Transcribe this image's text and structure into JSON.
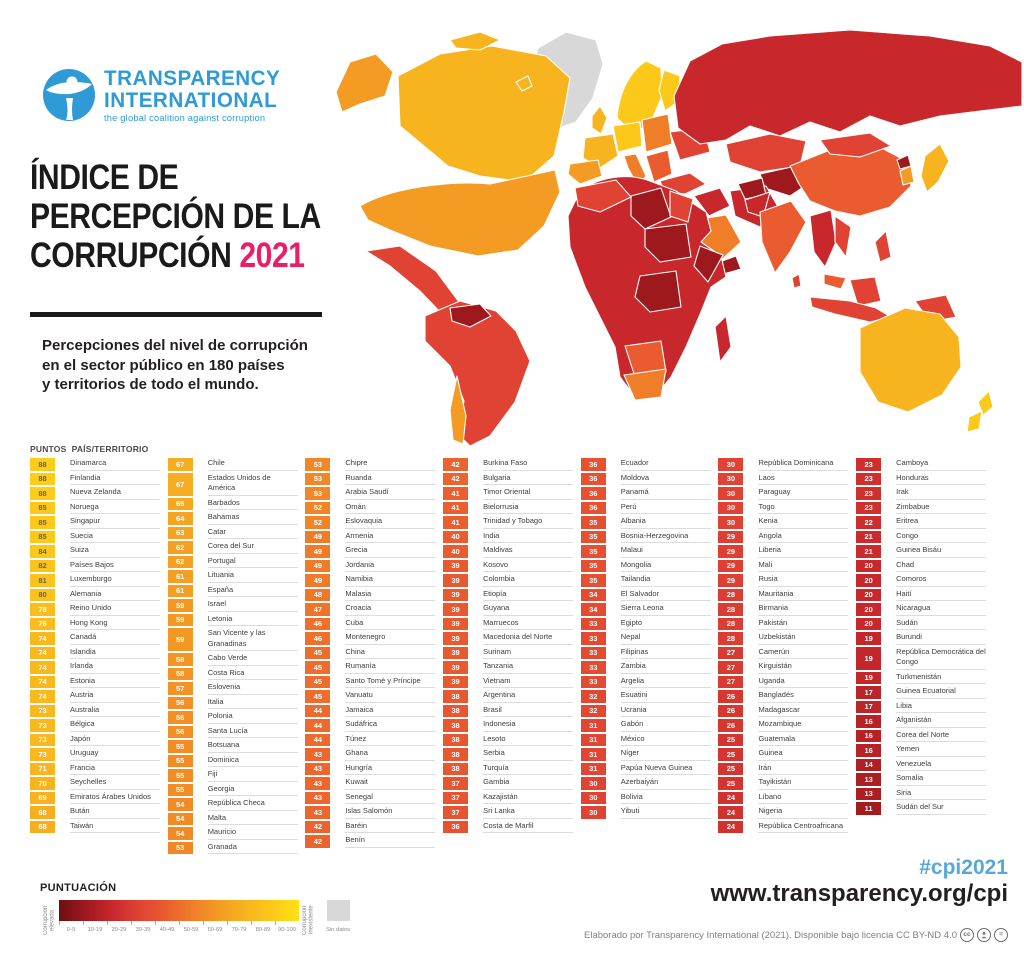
{
  "logo": {
    "name_line1": "TRANSPARENCY",
    "name_line2": "INTERNATIONAL",
    "tagline": "the global coalition against corruption",
    "brand_color": "#2e9bd6"
  },
  "title": {
    "line1": "ÍNDICE DE",
    "line2": "PERCEPCIÓN DE LA",
    "line3_black": "CORRUPCIÓN",
    "year": "2021",
    "year_color": "#ec1d67"
  },
  "subtitle": {
    "line1": "Percepciones del nivel de corrupción",
    "line2": "en el sector público en 180 países",
    "line3": "y territorios de todo el mundo."
  },
  "table": {
    "header_points": "PUNTOS",
    "header_country": "PAÍS/TERRITORIO",
    "columns": [
      [
        [
          88,
          "Dinamarca"
        ],
        [
          88,
          "Finlandia"
        ],
        [
          88,
          "Nueva Zelanda"
        ],
        [
          85,
          "Noruega"
        ],
        [
          85,
          "Singapur"
        ],
        [
          85,
          "Suecia"
        ],
        [
          84,
          "Suiza"
        ],
        [
          82,
          "Países Bajos"
        ],
        [
          81,
          "Luxemburgo"
        ],
        [
          80,
          "Alemania"
        ],
        [
          78,
          "Reino Unido"
        ],
        [
          76,
          "Hong Kong"
        ],
        [
          74,
          "Canadá"
        ],
        [
          74,
          "Islandia"
        ],
        [
          74,
          "Irlanda"
        ],
        [
          74,
          "Estonia"
        ],
        [
          74,
          "Austria"
        ],
        [
          73,
          "Australia"
        ],
        [
          73,
          "Bélgica"
        ],
        [
          73,
          "Japón"
        ],
        [
          73,
          "Uruguay"
        ],
        [
          71,
          "Francia"
        ],
        [
          70,
          "Seychelles"
        ],
        [
          69,
          "Emiratos Árabes Unidos"
        ],
        [
          68,
          "Bután"
        ],
        [
          68,
          "Taiwán"
        ]
      ],
      [
        [
          67,
          "Chile"
        ],
        [
          67,
          "Estados Unidos de América"
        ],
        [
          65,
          "Barbados"
        ],
        [
          64,
          "Bahamas"
        ],
        [
          63,
          "Catar"
        ],
        [
          62,
          "Corea del Sur"
        ],
        [
          62,
          "Portugal"
        ],
        [
          61,
          "Lituania"
        ],
        [
          61,
          "España"
        ],
        [
          59,
          "Israel"
        ],
        [
          59,
          "Letonia"
        ],
        [
          59,
          "San Vicente y las Granadinas"
        ],
        [
          58,
          "Cabo Verde"
        ],
        [
          58,
          "Costa Rica"
        ],
        [
          57,
          "Eslovenia"
        ],
        [
          56,
          "Italia"
        ],
        [
          56,
          "Polonia"
        ],
        [
          56,
          "Santa Lucía"
        ],
        [
          55,
          "Botsuana"
        ],
        [
          55,
          "Dominica"
        ],
        [
          55,
          "Fiji"
        ],
        [
          55,
          "Georgia"
        ],
        [
          54,
          "República Checa"
        ],
        [
          54,
          "Malta"
        ],
        [
          54,
          "Mauricio"
        ],
        [
          53,
          "Granada"
        ]
      ],
      [
        [
          53,
          "Chipre"
        ],
        [
          53,
          "Ruanda"
        ],
        [
          53,
          "Arabia Saudí"
        ],
        [
          52,
          "Omán"
        ],
        [
          52,
          "Eslovaquia"
        ],
        [
          49,
          "Armenia"
        ],
        [
          49,
          "Grecia"
        ],
        [
          49,
          "Jordania"
        ],
        [
          49,
          "Namibia"
        ],
        [
          48,
          "Malasia"
        ],
        [
          47,
          "Croacia"
        ],
        [
          46,
          "Cuba"
        ],
        [
          46,
          "Montenegro"
        ],
        [
          45,
          "China"
        ],
        [
          45,
          "Rumanía"
        ],
        [
          45,
          "Santo Tomé y Príncipe"
        ],
        [
          45,
          "Vanuatu"
        ],
        [
          44,
          "Jamaica"
        ],
        [
          44,
          "Sudáfrica"
        ],
        [
          44,
          "Túnez"
        ],
        [
          43,
          "Ghana"
        ],
        [
          43,
          "Hungría"
        ],
        [
          43,
          "Kuwait"
        ],
        [
          43,
          "Senegal"
        ],
        [
          43,
          "Islas Salomón"
        ],
        [
          42,
          "Baréin"
        ],
        [
          42,
          "Benín"
        ]
      ],
      [
        [
          42,
          "Burkina Faso"
        ],
        [
          42,
          "Bulgaria"
        ],
        [
          41,
          "Timor Oriental"
        ],
        [
          41,
          "Bielorrusia"
        ],
        [
          41,
          "Trinidad y Tobago"
        ],
        [
          40,
          "India"
        ],
        [
          40,
          "Maldivas"
        ],
        [
          39,
          "Kosovo"
        ],
        [
          39,
          "Colombia"
        ],
        [
          39,
          "Etiopía"
        ],
        [
          39,
          "Guyana"
        ],
        [
          39,
          "Marruecos"
        ],
        [
          39,
          "Macedonia del Norte"
        ],
        [
          39,
          "Surinam"
        ],
        [
          39,
          "Tanzania"
        ],
        [
          39,
          "Vietnam"
        ],
        [
          38,
          "Argentina"
        ],
        [
          38,
          "Brasil"
        ],
        [
          38,
          "Indonesia"
        ],
        [
          38,
          "Lesoto"
        ],
        [
          38,
          "Serbia"
        ],
        [
          38,
          "Turquía"
        ],
        [
          37,
          "Gambia"
        ],
        [
          37,
          "Kazajistán"
        ],
        [
          37,
          "Sri Lanka"
        ],
        [
          36,
          "Costa de Marfil"
        ]
      ],
      [
        [
          36,
          "Ecuador"
        ],
        [
          36,
          "Moldova"
        ],
        [
          36,
          "Panamá"
        ],
        [
          36,
          "Perú"
        ],
        [
          35,
          "Albania"
        ],
        [
          35,
          "Bosnia-Herzegovina"
        ],
        [
          35,
          "Malaui"
        ],
        [
          35,
          "Mongolia"
        ],
        [
          35,
          "Tailandia"
        ],
        [
          34,
          "El Salvador"
        ],
        [
          34,
          "Sierra Leona"
        ],
        [
          33,
          "Egipto"
        ],
        [
          33,
          "Nepal"
        ],
        [
          33,
          "Filipinas"
        ],
        [
          33,
          "Zambia"
        ],
        [
          33,
          "Argelia"
        ],
        [
          32,
          "Esuatini"
        ],
        [
          32,
          "Ucrania"
        ],
        [
          31,
          "Gabón"
        ],
        [
          31,
          "México"
        ],
        [
          31,
          "Níger"
        ],
        [
          31,
          "Papúa Nueva Guinea"
        ],
        [
          30,
          "Azerbaiyán"
        ],
        [
          30,
          "Bolivia"
        ],
        [
          30,
          "Yibuti"
        ]
      ],
      [
        [
          30,
          "República Dominicana"
        ],
        [
          30,
          "Laos"
        ],
        [
          30,
          "Paraguay"
        ],
        [
          30,
          "Togo"
        ],
        [
          30,
          "Kenia"
        ],
        [
          29,
          "Angola"
        ],
        [
          29,
          "Liberia"
        ],
        [
          29,
          "Mali"
        ],
        [
          29,
          "Rusia"
        ],
        [
          28,
          "Mauritania"
        ],
        [
          28,
          "Birmania"
        ],
        [
          28,
          "Pakistán"
        ],
        [
          28,
          "Uzbekistán"
        ],
        [
          27,
          "Camerún"
        ],
        [
          27,
          "Kirguistán"
        ],
        [
          27,
          "Uganda"
        ],
        [
          26,
          "Bangladés"
        ],
        [
          26,
          "Madagascar"
        ],
        [
          26,
          "Mozambique"
        ],
        [
          25,
          "Guatemala"
        ],
        [
          25,
          "Guinea"
        ],
        [
          25,
          "Irán"
        ],
        [
          25,
          "Tayikistán"
        ],
        [
          24,
          "Líbano"
        ],
        [
          24,
          "Nigeria"
        ],
        [
          24,
          "República Centroafricana"
        ]
      ],
      [
        [
          23,
          "Camboya"
        ],
        [
          23,
          "Honduras"
        ],
        [
          23,
          "Irak"
        ],
        [
          23,
          "Zimbabue"
        ],
        [
          22,
          "Eritrea"
        ],
        [
          21,
          "Congo"
        ],
        [
          21,
          "Guinea Bisáu"
        ],
        [
          20,
          "Chad"
        ],
        [
          20,
          "Comoros"
        ],
        [
          20,
          "Haití"
        ],
        [
          20,
          "Nicaragua"
        ],
        [
          20,
          "Sudán"
        ],
        [
          19,
          "Burundi"
        ],
        [
          19,
          "República Democrática del Congo"
        ],
        [
          19,
          "Turkmenistán"
        ],
        [
          17,
          "Guinea Ecuatorial"
        ],
        [
          17,
          "Libia"
        ],
        [
          16,
          "Afganistán"
        ],
        [
          16,
          "Corea del Norte"
        ],
        [
          16,
          "Yemen"
        ],
        [
          14,
          "Venezuela"
        ],
        [
          13,
          "Somalia"
        ],
        [
          13,
          "Siria"
        ],
        [
          11,
          "Sudán del Sur"
        ]
      ]
    ]
  },
  "legend": {
    "title": "PUNTUACIÓN",
    "left_label": "Corrupción elevada",
    "right_label": "Corrupción inexistente",
    "no_data_label": "Sin datos",
    "no_data_color": "#d8d8d8",
    "ranges": [
      "0-9",
      "10-19",
      "20-29",
      "30-39",
      "40-49",
      "50-59",
      "60-69",
      "70-79",
      "80-89",
      "90-100"
    ],
    "colors": [
      "#6e0e12",
      "#9e191e",
      "#c8282c",
      "#e04233",
      "#ea5c30",
      "#f07e28",
      "#f49b24",
      "#f8b41e",
      "#fcc91a",
      "#ffe215"
    ]
  },
  "score_scale": {
    "stops": [
      [
        0,
        "#6e0e12"
      ],
      [
        10,
        "#9e191e"
      ],
      [
        20,
        "#c8282c"
      ],
      [
        30,
        "#e04233"
      ],
      [
        40,
        "#ea5c30"
      ],
      [
        50,
        "#f07e28"
      ],
      [
        60,
        "#f49b24"
      ],
      [
        70,
        "#f8b41e"
      ],
      [
        80,
        "#fbc11c"
      ],
      [
        100,
        "#ffdf15"
      ]
    ],
    "dark_text": "#6e6243",
    "light_text": "#ffffff"
  },
  "footer": {
    "hashtag": "#cpi2021",
    "hashtag_color": "#56a8d8",
    "url": "www.transparency.org/cpi",
    "attribution": "Elaborado por Transparency International (2021). Disponible bajo licencia CC BY-ND 4.0",
    "cc_icons": [
      "cc",
      "by",
      "nd"
    ]
  },
  "chart_data": {
    "type": "heatmap",
    "title": "Índice de Percepción de la Corrupción 2021",
    "scale": {
      "min": 0,
      "max": 100,
      "low_label": "Corrupción elevada",
      "high_label": "Corrupción inexistente"
    },
    "scores": {
      "Dinamarca": 88,
      "Finlandia": 88,
      "Nueva Zelanda": 88,
      "Noruega": 85,
      "Singapur": 85,
      "Suecia": 85,
      "Suiza": 84,
      "Países Bajos": 82,
      "Luxemburgo": 81,
      "Alemania": 80,
      "Reino Unido": 78,
      "Hong Kong": 76,
      "Canadá": 74,
      "Islandia": 74,
      "Irlanda": 74,
      "Estonia": 74,
      "Austria": 74,
      "Australia": 73,
      "Bélgica": 73,
      "Japón": 73,
      "Uruguay": 73,
      "Francia": 71,
      "Seychelles": 70,
      "Emiratos Árabes Unidos": 69,
      "Bután": 68,
      "Taiwán": 68,
      "Chile": 67,
      "Estados Unidos de América": 67,
      "Barbados": 65,
      "Bahamas": 64,
      "Catar": 63,
      "Corea del Sur": 62,
      "Portugal": 62,
      "Lituania": 61,
      "España": 61,
      "Israel": 59,
      "Letonia": 59,
      "San Vicente y las Granadinas": 59,
      "Cabo Verde": 58,
      "Costa Rica": 58,
      "Eslovenia": 57,
      "Italia": 56,
      "Polonia": 56,
      "Santa Lucía": 56,
      "Botsuana": 55,
      "Dominica": 55,
      "Fiji": 55,
      "Georgia": 55,
      "República Checa": 54,
      "Malta": 54,
      "Mauricio": 54,
      "Granada": 53,
      "Chipre": 53,
      "Ruanda": 53,
      "Arabia Saudí": 53,
      "Omán": 52,
      "Eslovaquia": 52,
      "Armenia": 49,
      "Grecia": 49,
      "Jordania": 49,
      "Namibia": 49,
      "Malasia": 48,
      "Croacia": 47,
      "Cuba": 46,
      "Montenegro": 46,
      "China": 45,
      "Rumanía": 45,
      "Santo Tomé y Príncipe": 45,
      "Vanuatu": 45,
      "Jamaica": 44,
      "Sudáfrica": 44,
      "Túnez": 44,
      "Ghana": 43,
      "Hungría": 43,
      "Kuwait": 43,
      "Senegal": 43,
      "Islas Salomón": 43,
      "Baréin": 42,
      "Benín": 42,
      "Burkina Faso": 42,
      "Bulgaria": 42,
      "Timor Oriental": 41,
      "Bielorrusia": 41,
      "Trinidad y Tobago": 41,
      "India": 40,
      "Maldivas": 40,
      "Kosovo": 39,
      "Colombia": 39,
      "Etiopía": 39,
      "Guyana": 39,
      "Marruecos": 39,
      "Macedonia del Norte": 39,
      "Surinam": 39,
      "Tanzania": 39,
      "Vietnam": 39,
      "Argentina": 38,
      "Brasil": 38,
      "Indonesia": 38,
      "Lesoto": 38,
      "Serbia": 38,
      "Turquía": 38,
      "Gambia": 37,
      "Kazajistán": 37,
      "Sri Lanka": 37,
      "Costa de Marfil": 36,
      "Ecuador": 36,
      "Moldova": 36,
      "Panamá": 36,
      "Perú": 36,
      "Albania": 35,
      "Bosnia-Herzegovina": 35,
      "Malaui": 35,
      "Mongolia": 35,
      "Tailandia": 35,
      "El Salvador": 34,
      "Sierra Leona": 34,
      "Egipto": 33,
      "Nepal": 33,
      "Filipinas": 33,
      "Zambia": 33,
      "Argelia": 33,
      "Esuatini": 32,
      "Ucrania": 32,
      "Gabón": 31,
      "México": 31,
      "Níger": 31,
      "Papúa Nueva Guinea": 31,
      "Azerbaiyán": 30,
      "Bolivia": 30,
      "Yibuti": 30,
      "República Dominicana": 30,
      "Laos": 30,
      "Paraguay": 30,
      "Togo": 30,
      "Kenia": 30,
      "Angola": 29,
      "Liberia": 29,
      "Mali": 29,
      "Rusia": 29,
      "Mauritania": 28,
      "Birmania": 28,
      "Pakistán": 28,
      "Uzbekistán": 28,
      "Camerún": 27,
      "Kirguistán": 27,
      "Uganda": 27,
      "Bangladés": 26,
      "Madagascar": 26,
      "Mozambique": 26,
      "Guatemala": 25,
      "Guinea": 25,
      "Irán": 25,
      "Tayikistán": 25,
      "Líbano": 24,
      "Nigeria": 24,
      "República Centroafricana": 24,
      "Camboya": 23,
      "Honduras": 23,
      "Irak": 23,
      "Zimbabue": 23,
      "Eritrea": 22,
      "Congo": 21,
      "Guinea Bisáu": 21,
      "Chad": 20,
      "Comoros": 20,
      "Haití": 20,
      "Nicaragua": 20,
      "Sudán": 20,
      "Burundi": 19,
      "República Democrática del Congo": 19,
      "Turkmenistán": 19,
      "Guinea Ecuatorial": 17,
      "Libia": 17,
      "Afganistán": 16,
      "Corea del Norte": 16,
      "Yemen": 16,
      "Venezuela": 14,
      "Somalia": 13,
      "Siria": 13,
      "Sudán del Sur": 11
    }
  }
}
